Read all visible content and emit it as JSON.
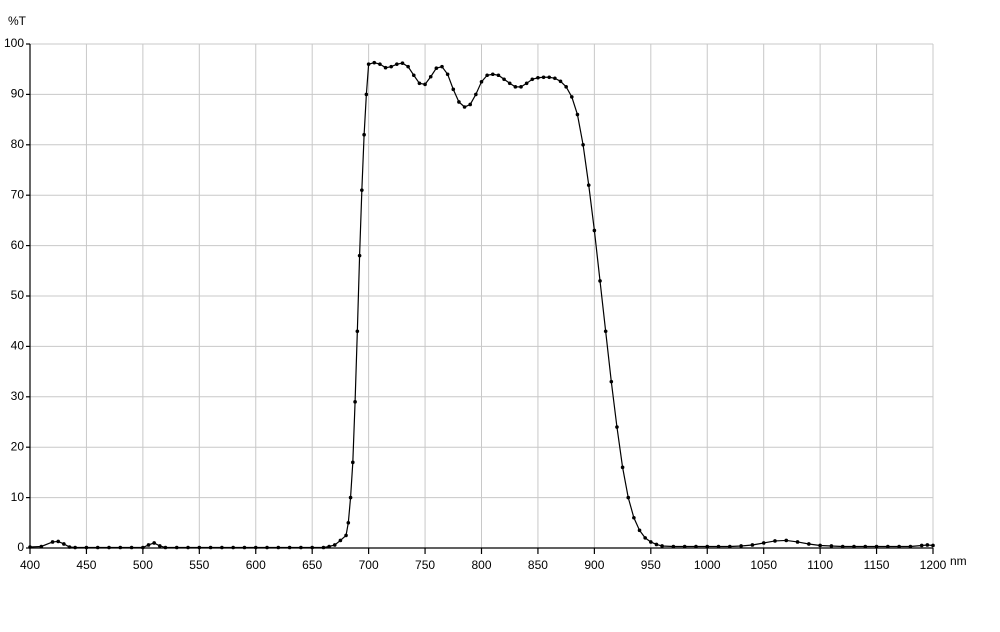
{
  "chart_data": {
    "type": "line",
    "y_axis_label": "%T",
    "x_axis_label": "nm",
    "xlim": [
      400,
      1200
    ],
    "ylim": [
      0,
      100
    ],
    "xticks": [
      400,
      450,
      500,
      550,
      600,
      650,
      700,
      750,
      800,
      850,
      900,
      950,
      1000,
      1050,
      1100,
      1150,
      1200
    ],
    "yticks": [
      0,
      10,
      20,
      30,
      40,
      50,
      60,
      70,
      80,
      90,
      100
    ],
    "grid": true,
    "color": "#000000",
    "markers": true,
    "x": [
      400,
      410,
      420,
      425,
      430,
      435,
      440,
      450,
      460,
      470,
      480,
      490,
      500,
      505,
      510,
      515,
      520,
      530,
      540,
      550,
      560,
      570,
      580,
      590,
      600,
      610,
      620,
      630,
      640,
      650,
      660,
      665,
      670,
      675,
      680,
      682,
      684,
      686,
      688,
      690,
      692,
      694,
      696,
      698,
      700,
      705,
      710,
      715,
      720,
      725,
      730,
      735,
      740,
      745,
      750,
      755,
      760,
      765,
      770,
      775,
      780,
      785,
      790,
      795,
      800,
      805,
      810,
      815,
      820,
      825,
      830,
      835,
      840,
      845,
      850,
      855,
      860,
      865,
      870,
      875,
      880,
      885,
      890,
      895,
      900,
      905,
      910,
      915,
      920,
      925,
      930,
      935,
      940,
      945,
      950,
      955,
      960,
      970,
      980,
      990,
      1000,
      1010,
      1020,
      1030,
      1040,
      1050,
      1060,
      1070,
      1080,
      1090,
      1100,
      1110,
      1120,
      1130,
      1140,
      1150,
      1160,
      1170,
      1180,
      1190,
      1195,
      1200
    ],
    "values": [
      0.2,
      0.3,
      1.2,
      1.3,
      0.8,
      0.2,
      0.1,
      0.1,
      0.1,
      0.1,
      0.1,
      0.1,
      0.1,
      0.6,
      1.0,
      0.4,
      0.1,
      0.1,
      0.1,
      0.1,
      0.1,
      0.1,
      0.1,
      0.1,
      0.1,
      0.1,
      0.1,
      0.1,
      0.1,
      0.1,
      0.1,
      0.3,
      0.6,
      1.5,
      2.5,
      5,
      10,
      17,
      29,
      43,
      58,
      71,
      82,
      90,
      96,
      96.3,
      96,
      95.3,
      95.5,
      96,
      96.2,
      95.5,
      93.8,
      92.2,
      92,
      93.5,
      95.2,
      95.5,
      94,
      91,
      88.5,
      87.5,
      88,
      90,
      92.5,
      93.8,
      94,
      93.8,
      93,
      92.2,
      91.5,
      91.5,
      92.2,
      93,
      93.3,
      93.4,
      93.4,
      93.2,
      92.6,
      91.5,
      89.5,
      86,
      80,
      72,
      63,
      53,
      43,
      33,
      24,
      16,
      10,
      6,
      3.5,
      2,
      1.2,
      0.7,
      0.4,
      0.3,
      0.3,
      0.3,
      0.3,
      0.3,
      0.3,
      0.4,
      0.6,
      1.0,
      1.4,
      1.5,
      1.2,
      0.8,
      0.5,
      0.4,
      0.3,
      0.3,
      0.3,
      0.3,
      0.3,
      0.3,
      0.3,
      0.5,
      0.6,
      0.5
    ]
  }
}
